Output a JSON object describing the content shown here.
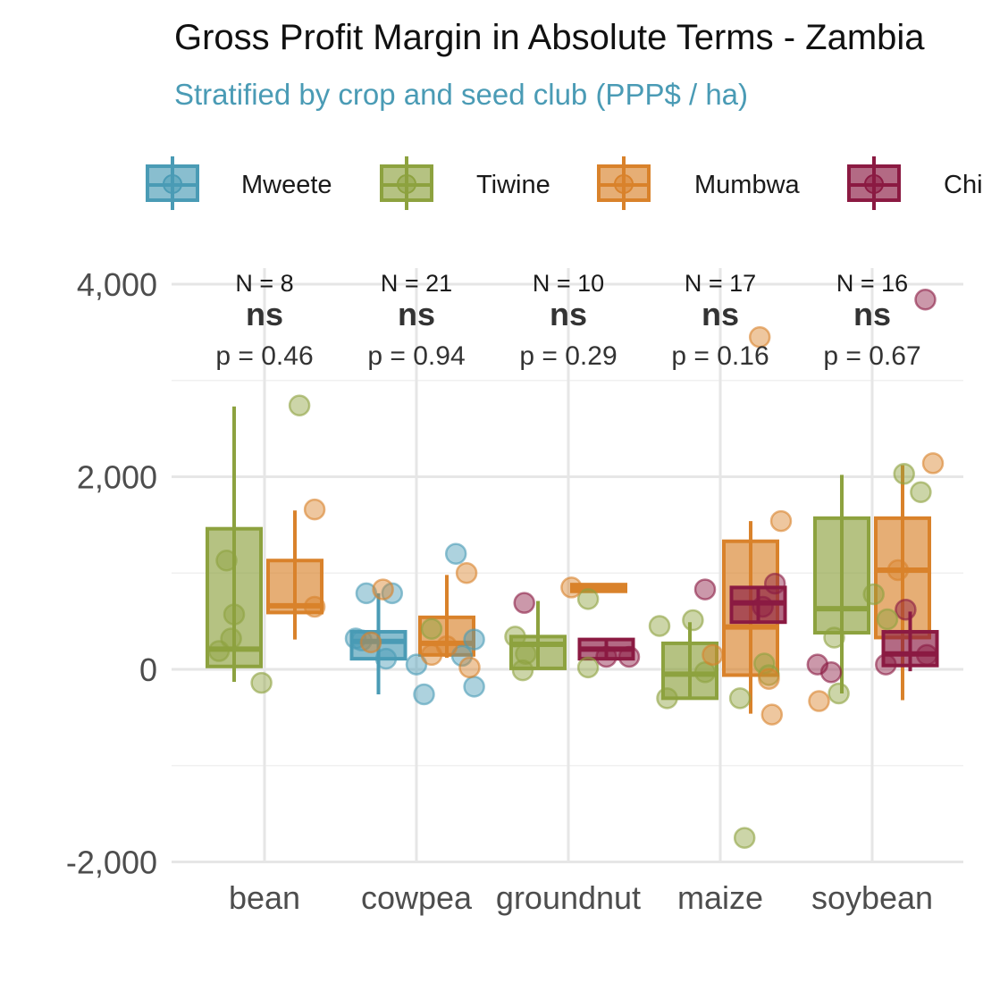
{
  "chart_data": {
    "type": "box",
    "title": "Gross Profit Margin in Absolute Terms - Zambia",
    "subtitle": "Stratified by crop and seed club (PPP$ / ha)",
    "xlabel": "",
    "ylabel": "",
    "ylim": [
      -2000,
      4000
    ],
    "yticks": [
      -2000,
      0,
      2000,
      4000
    ],
    "ytick_labels": [
      "-2,000",
      "0",
      "2,000",
      "4,000"
    ],
    "grid": true,
    "legend_position": "top",
    "categories": [
      "bean",
      "cowpea",
      "groundnut",
      "maize",
      "soybean"
    ],
    "series": [
      {
        "name": "Mweete",
        "color": "#4A9BB5"
      },
      {
        "name": "Tiwine",
        "color": "#8DA23F"
      },
      {
        "name": "Mumbwa",
        "color": "#D9822B"
      },
      {
        "name": "Chikuni",
        "color": "#8B1A42"
      }
    ],
    "annotations": [
      {
        "category": "bean",
        "n": "N = 8",
        "sig": "ns",
        "p": "p = 0.46"
      },
      {
        "category": "cowpea",
        "n": "N = 21",
        "sig": "ns",
        "p": "p = 0.94"
      },
      {
        "category": "groundnut",
        "n": "N = 10",
        "sig": "ns",
        "p": "p = 0.29"
      },
      {
        "category": "maize",
        "n": "N = 17",
        "sig": "ns",
        "p": "p = 0.16"
      },
      {
        "category": "soybean",
        "n": "N = 16",
        "sig": "ns",
        "p": "p = 0.67"
      }
    ],
    "boxes": [
      {
        "category": "bean",
        "series": "Tiwine",
        "whisker_low": -130,
        "q1": 30,
        "median": 210,
        "q3": 1460,
        "whisker_high": 2730
      },
      {
        "category": "bean",
        "series": "Mumbwa",
        "whisker_low": 310,
        "q1": 590,
        "median": 660,
        "q3": 1130,
        "whisker_high": 1650
      },
      {
        "category": "cowpea",
        "series": "Mweete",
        "whisker_low": -260,
        "q1": 110,
        "median": 290,
        "q3": 390,
        "whisker_high": 790
      },
      {
        "category": "cowpea",
        "series": "Mumbwa",
        "whisker_low": 120,
        "q1": 150,
        "median": 270,
        "q3": 540,
        "whisker_high": 980
      },
      {
        "category": "groundnut",
        "series": "Tiwine",
        "whisker_low": 10,
        "q1": 10,
        "median": 260,
        "q3": 340,
        "whisker_high": 710
      },
      {
        "category": "groundnut",
        "series": "Mumbwa",
        "whisker_low": 810,
        "q1": 810,
        "median": 840,
        "q3": 880,
        "whisker_high": 880
      },
      {
        "category": "groundnut",
        "series": "Chikuni",
        "whisker_low": 110,
        "q1": 110,
        "median": 210,
        "q3": 310,
        "whisker_high": 310
      },
      {
        "category": "maize",
        "series": "Tiwine",
        "whisker_low": -300,
        "q1": -300,
        "median": -50,
        "q3": 270,
        "whisker_high": 490
      },
      {
        "category": "maize",
        "series": "Mumbwa",
        "whisker_low": -460,
        "q1": -60,
        "median": 440,
        "q3": 1330,
        "whisker_high": 1540
      },
      {
        "category": "maize",
        "series": "Chikuni",
        "whisker_low": 490,
        "q1": 490,
        "median": 690,
        "q3": 850,
        "whisker_high": 850
      },
      {
        "category": "soybean",
        "series": "Tiwine",
        "whisker_low": -250,
        "q1": 380,
        "median": 630,
        "q3": 1570,
        "whisker_high": 2020
      },
      {
        "category": "soybean",
        "series": "Mumbwa",
        "whisker_low": -320,
        "q1": 330,
        "median": 1030,
        "q3": 1570,
        "whisker_high": 2120
      },
      {
        "category": "soybean",
        "series": "Chikuni",
        "whisker_low": -20,
        "q1": 40,
        "median": 160,
        "q3": 390,
        "whisker_high": 600
      }
    ],
    "points": [
      {
        "category": "bean",
        "series": "Tiwine",
        "x_offset": -0.3,
        "y": 190
      },
      {
        "category": "bean",
        "series": "Tiwine",
        "x_offset": -0.25,
        "y": 1130
      },
      {
        "category": "bean",
        "series": "Tiwine",
        "x_offset": -0.22,
        "y": 320
      },
      {
        "category": "bean",
        "series": "Tiwine",
        "x_offset": -0.2,
        "y": 570
      },
      {
        "category": "bean",
        "series": "Tiwine",
        "x_offset": -0.02,
        "y": -140
      },
      {
        "category": "bean",
        "series": "Tiwine",
        "x_offset": 0.23,
        "y": 2740
      },
      {
        "category": "bean",
        "series": "Mumbwa",
        "x_offset": 0.33,
        "y": 1660
      },
      {
        "category": "bean",
        "series": "Mumbwa",
        "x_offset": 0.33,
        "y": 650
      },
      {
        "category": "cowpea",
        "series": "Mweete",
        "x_offset": -0.4,
        "y": 320
      },
      {
        "category": "cowpea",
        "series": "Mweete",
        "x_offset": -0.36,
        "y": 300
      },
      {
        "category": "cowpea",
        "series": "Mweete",
        "x_offset": -0.33,
        "y": 790
      },
      {
        "category": "cowpea",
        "series": "Mweete",
        "x_offset": -0.2,
        "y": 110
      },
      {
        "category": "cowpea",
        "series": "Mweete",
        "x_offset": -0.16,
        "y": 790
      },
      {
        "category": "cowpea",
        "series": "Mweete",
        "x_offset": 0.0,
        "y": 50
      },
      {
        "category": "cowpea",
        "series": "Mweete",
        "x_offset": 0.05,
        "y": -260
      },
      {
        "category": "cowpea",
        "series": "Mweete",
        "x_offset": 0.26,
        "y": 1200
      },
      {
        "category": "cowpea",
        "series": "Mweete",
        "x_offset": 0.3,
        "y": 140
      },
      {
        "category": "cowpea",
        "series": "Mweete",
        "x_offset": 0.38,
        "y": 310
      },
      {
        "category": "cowpea",
        "series": "Mweete",
        "x_offset": 0.38,
        "y": -180
      },
      {
        "category": "cowpea",
        "series": "Mumbwa",
        "x_offset": -0.22,
        "y": 830
      },
      {
        "category": "cowpea",
        "series": "Mumbwa",
        "x_offset": -0.3,
        "y": 280
      },
      {
        "category": "cowpea",
        "series": "Mumbwa",
        "x_offset": 0.1,
        "y": 150
      },
      {
        "category": "cowpea",
        "series": "Mumbwa",
        "x_offset": 0.2,
        "y": 240
      },
      {
        "category": "cowpea",
        "series": "Mumbwa",
        "x_offset": 0.33,
        "y": 1000
      },
      {
        "category": "cowpea",
        "series": "Mumbwa",
        "x_offset": 0.35,
        "y": 20
      },
      {
        "category": "cowpea",
        "series": "Tiwine",
        "x_offset": 0.1,
        "y": 420
      },
      {
        "category": "groundnut",
        "series": "Tiwine",
        "x_offset": -0.35,
        "y": 340
      },
      {
        "category": "groundnut",
        "series": "Tiwine",
        "x_offset": -0.3,
        "y": -10
      },
      {
        "category": "groundnut",
        "series": "Tiwine",
        "x_offset": -0.28,
        "y": 160
      },
      {
        "category": "groundnut",
        "series": "Tiwine",
        "x_offset": 0.13,
        "y": 730
      },
      {
        "category": "groundnut",
        "series": "Tiwine",
        "x_offset": 0.13,
        "y": 20
      },
      {
        "category": "groundnut",
        "series": "Chikuni",
        "x_offset": -0.29,
        "y": 690
      },
      {
        "category": "groundnut",
        "series": "Chikuni",
        "x_offset": 0.25,
        "y": 130
      },
      {
        "category": "groundnut",
        "series": "Chikuni",
        "x_offset": 0.4,
        "y": 130
      },
      {
        "category": "groundnut",
        "series": "Mumbwa",
        "x_offset": 0.02,
        "y": 850
      },
      {
        "category": "maize",
        "series": "Tiwine",
        "x_offset": -0.4,
        "y": 450
      },
      {
        "category": "maize",
        "series": "Tiwine",
        "x_offset": -0.35,
        "y": -300
      },
      {
        "category": "maize",
        "series": "Tiwine",
        "x_offset": -0.18,
        "y": 510
      },
      {
        "category": "maize",
        "series": "Tiwine",
        "x_offset": -0.1,
        "y": -30
      },
      {
        "category": "maize",
        "series": "Tiwine",
        "x_offset": 0.13,
        "y": -300
      },
      {
        "category": "maize",
        "series": "Tiwine",
        "x_offset": 0.16,
        "y": -1750
      },
      {
        "category": "maize",
        "series": "Tiwine",
        "x_offset": 0.29,
        "y": 60
      },
      {
        "category": "maize",
        "series": "Tiwine",
        "x_offset": 0.32,
        "y": -60
      },
      {
        "category": "maize",
        "series": "Chikuni",
        "x_offset": -0.1,
        "y": 830
      },
      {
        "category": "maize",
        "series": "Chikuni",
        "x_offset": 0.28,
        "y": 650
      },
      {
        "category": "maize",
        "series": "Chikuni",
        "x_offset": 0.36,
        "y": 890
      },
      {
        "category": "maize",
        "series": "Mumbwa",
        "x_offset": -0.05,
        "y": 150
      },
      {
        "category": "maize",
        "series": "Mumbwa",
        "x_offset": 0.26,
        "y": 3450
      },
      {
        "category": "maize",
        "series": "Mumbwa",
        "x_offset": 0.32,
        "y": -100
      },
      {
        "category": "maize",
        "series": "Mumbwa",
        "x_offset": 0.34,
        "y": -470
      },
      {
        "category": "maize",
        "series": "Mumbwa",
        "x_offset": 0.4,
        "y": 1540
      },
      {
        "category": "soybean",
        "series": "Chikuni",
        "x_offset": -0.36,
        "y": 50
      },
      {
        "category": "soybean",
        "series": "Chikuni",
        "x_offset": -0.27,
        "y": -30
      },
      {
        "category": "soybean",
        "series": "Chikuni",
        "x_offset": 0.09,
        "y": 50
      },
      {
        "category": "soybean",
        "series": "Chikuni",
        "x_offset": 0.22,
        "y": 620
      },
      {
        "category": "soybean",
        "series": "Chikuni",
        "x_offset": 0.36,
        "y": 150
      },
      {
        "category": "soybean",
        "series": "Chikuni",
        "x_offset": 0.35,
        "y": 3840
      },
      {
        "category": "soybean",
        "series": "Tiwine",
        "x_offset": -0.22,
        "y": -250
      },
      {
        "category": "soybean",
        "series": "Tiwine",
        "x_offset": -0.25,
        "y": 330
      },
      {
        "category": "soybean",
        "series": "Tiwine",
        "x_offset": 0.01,
        "y": 780
      },
      {
        "category": "soybean",
        "series": "Tiwine",
        "x_offset": 0.1,
        "y": 520
      },
      {
        "category": "soybean",
        "series": "Tiwine",
        "x_offset": 0.21,
        "y": 2030
      },
      {
        "category": "soybean",
        "series": "Tiwine",
        "x_offset": 0.32,
        "y": 1840
      },
      {
        "category": "soybean",
        "series": "Mumbwa",
        "x_offset": -0.35,
        "y": -330
      },
      {
        "category": "soybean",
        "series": "Mumbwa",
        "x_offset": 0.17,
        "y": 1030
      },
      {
        "category": "soybean",
        "series": "Mumbwa",
        "x_offset": 0.4,
        "y": 2140
      }
    ]
  }
}
